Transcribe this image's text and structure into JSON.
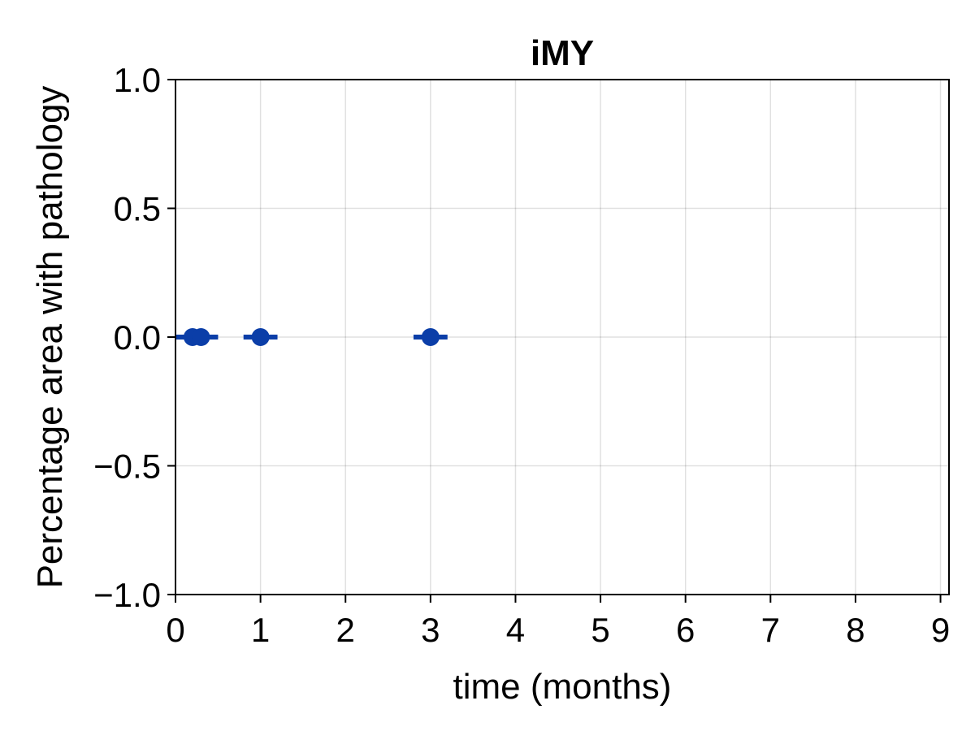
{
  "chart_data": {
    "type": "scatter",
    "title": "iMY",
    "xlabel": "time (months)",
    "ylabel": "Percentage area with pathology",
    "xlim": [
      0,
      9.1
    ],
    "ylim": [
      -1.0,
      1.0
    ],
    "x_ticks": [
      0,
      1,
      2,
      3,
      4,
      5,
      6,
      7,
      8,
      9
    ],
    "x_tick_labels": [
      "0",
      "1",
      "2",
      "3",
      "4",
      "5",
      "6",
      "7",
      "8",
      "9"
    ],
    "y_ticks": [
      1.0,
      0.5,
      0.0,
      -0.5,
      -1.0
    ],
    "y_tick_labels": [
      "1.0",
      "0.5",
      "0.0",
      "−0.5",
      "−1.0"
    ],
    "grid": true,
    "legend": "none",
    "series": [
      {
        "color": "#0b3ea8",
        "points": [
          {
            "x": 0.2,
            "y": 0.0,
            "err_x_low": 0.0,
            "err_x_high": 0.5
          },
          {
            "x": 0.3,
            "y": 0.0,
            "err_x_low": 0.0,
            "err_x_high": 0.5
          },
          {
            "x": 1.0,
            "y": 0.0,
            "err_x_low": 0.8,
            "err_x_high": 1.2
          },
          {
            "x": 3.0,
            "y": 0.0,
            "err_x_low": 2.8,
            "err_x_high": 3.2
          }
        ]
      }
    ]
  }
}
